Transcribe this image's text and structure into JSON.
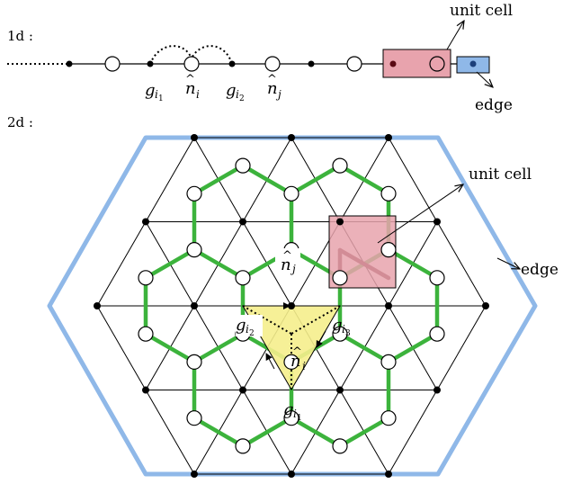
{
  "colors": {
    "boundary": "#8fb8e8",
    "honeycomb": "#3cb33c",
    "cell_fill": "#e8a3ad",
    "edge_box_fill": "#8fb8e8",
    "triangle_fill": "#f5ee8c",
    "line": "#000000",
    "dark_site": "#5a0a14",
    "blue_site": "#1c3f7a"
  },
  "panel_1d": {
    "label": "1d :",
    "unit_cell_label": "unit cell",
    "edge_label": "edge",
    "site_labels": {
      "g1": {
        "base": "g",
        "sub": "i",
        "subsub": "1"
      },
      "n1": {
        "base": "n",
        "hat": "^",
        "sub": "i"
      },
      "g2": {
        "base": "g",
        "sub": "i",
        "subsub": "2"
      },
      "n2": {
        "base": "n",
        "hat": "^",
        "sub": "j"
      }
    }
  },
  "panel_2d": {
    "label": "2d :",
    "unit_cell_label": "unit cell",
    "edge_label": "edge",
    "site_labels": {
      "n_j": {
        "base": "n",
        "hat": "^",
        "sub": "j"
      },
      "g_i2": {
        "base": "g",
        "sub": "i",
        "subsub": "2"
      },
      "g_i3": {
        "base": "g",
        "sub": "i",
        "subsub": "3"
      },
      "n_i": {
        "base": "n",
        "hat": "^",
        "sub": "i"
      },
      "g_i1": {
        "base": "g",
        "sub": "i",
        "subsub": "1"
      }
    }
  }
}
